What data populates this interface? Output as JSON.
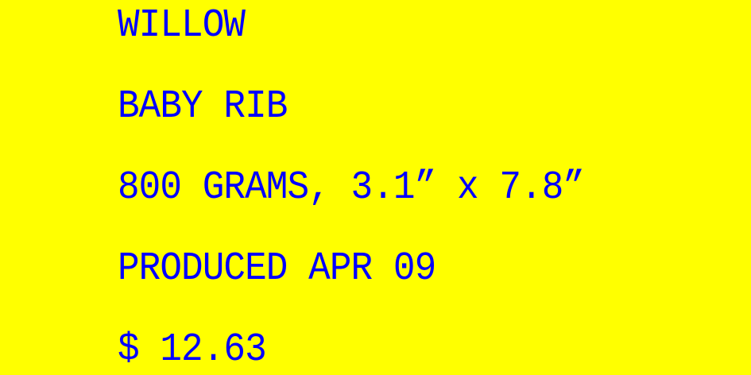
{
  "label": {
    "product_name": "WILLOW",
    "cut": "BABY RIB",
    "weight_dimensions": "800 GRAMS, 3.1” x 7.8”",
    "produced": "PRODUCED APR 09",
    "price": "$ 12.63"
  },
  "colors": {
    "background": "#ffff00",
    "text": "#0000ff"
  }
}
